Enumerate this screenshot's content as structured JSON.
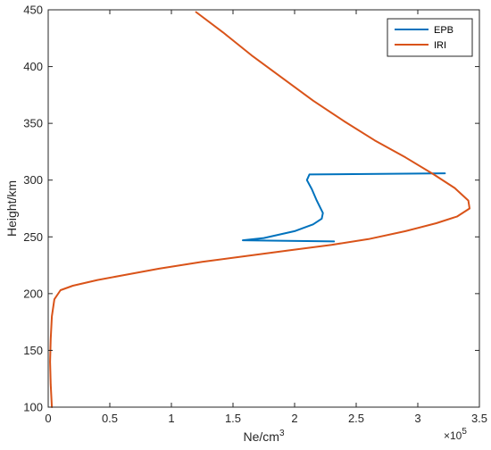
{
  "chart_data": {
    "type": "line",
    "xlabel": "Ne/cm",
    "xlabel_sup": "3",
    "ylabel": "Height/km",
    "x_multiplier_base": "×10",
    "x_multiplier_exp": "5",
    "xlim": [
      0,
      3.5
    ],
    "ylim": [
      100,
      450
    ],
    "xticks": [
      0,
      0.5,
      1,
      1.5,
      2,
      2.5,
      3,
      3.5
    ],
    "xtick_labels": [
      "0",
      "0.5",
      "1",
      "1.5",
      "2",
      "2.5",
      "3",
      "3.5"
    ],
    "yticks": [
      100,
      150,
      200,
      250,
      300,
      350,
      400,
      450
    ],
    "ytick_labels": [
      "100",
      "150",
      "200",
      "250",
      "300",
      "350",
      "400",
      "450"
    ],
    "grid": false,
    "legend_position": "top-right",
    "series": [
      {
        "name": "EPB",
        "color": "#0072BD",
        "points": [
          [
            2.32,
            246
          ],
          [
            1.58,
            247
          ],
          [
            1.75,
            249
          ],
          [
            2.0,
            255
          ],
          [
            2.15,
            261
          ],
          [
            2.22,
            266
          ],
          [
            2.23,
            271
          ],
          [
            2.18,
            282
          ],
          [
            2.14,
            292
          ],
          [
            2.1,
            300
          ],
          [
            2.12,
            305
          ],
          [
            3.22,
            306
          ]
        ]
      },
      {
        "name": "IRI",
        "color": "#D95319",
        "points": [
          [
            0.03,
            100
          ],
          [
            0.02,
            120
          ],
          [
            0.015,
            140
          ],
          [
            0.02,
            160
          ],
          [
            0.03,
            180
          ],
          [
            0.05,
            195
          ],
          [
            0.1,
            203
          ],
          [
            0.2,
            207
          ],
          [
            0.4,
            212
          ],
          [
            0.6,
            216
          ],
          [
            0.9,
            222
          ],
          [
            1.25,
            228
          ],
          [
            1.6,
            233
          ],
          [
            1.95,
            238
          ],
          [
            2.3,
            243
          ],
          [
            2.6,
            248
          ],
          [
            2.9,
            255
          ],
          [
            3.15,
            262
          ],
          [
            3.32,
            268
          ],
          [
            3.42,
            275
          ],
          [
            3.41,
            282
          ],
          [
            3.3,
            293
          ],
          [
            3.13,
            305
          ],
          [
            2.9,
            320
          ],
          [
            2.65,
            335
          ],
          [
            2.4,
            352
          ],
          [
            2.15,
            370
          ],
          [
            1.9,
            390
          ],
          [
            1.65,
            410
          ],
          [
            1.42,
            430
          ],
          [
            1.2,
            448
          ]
        ]
      }
    ]
  }
}
